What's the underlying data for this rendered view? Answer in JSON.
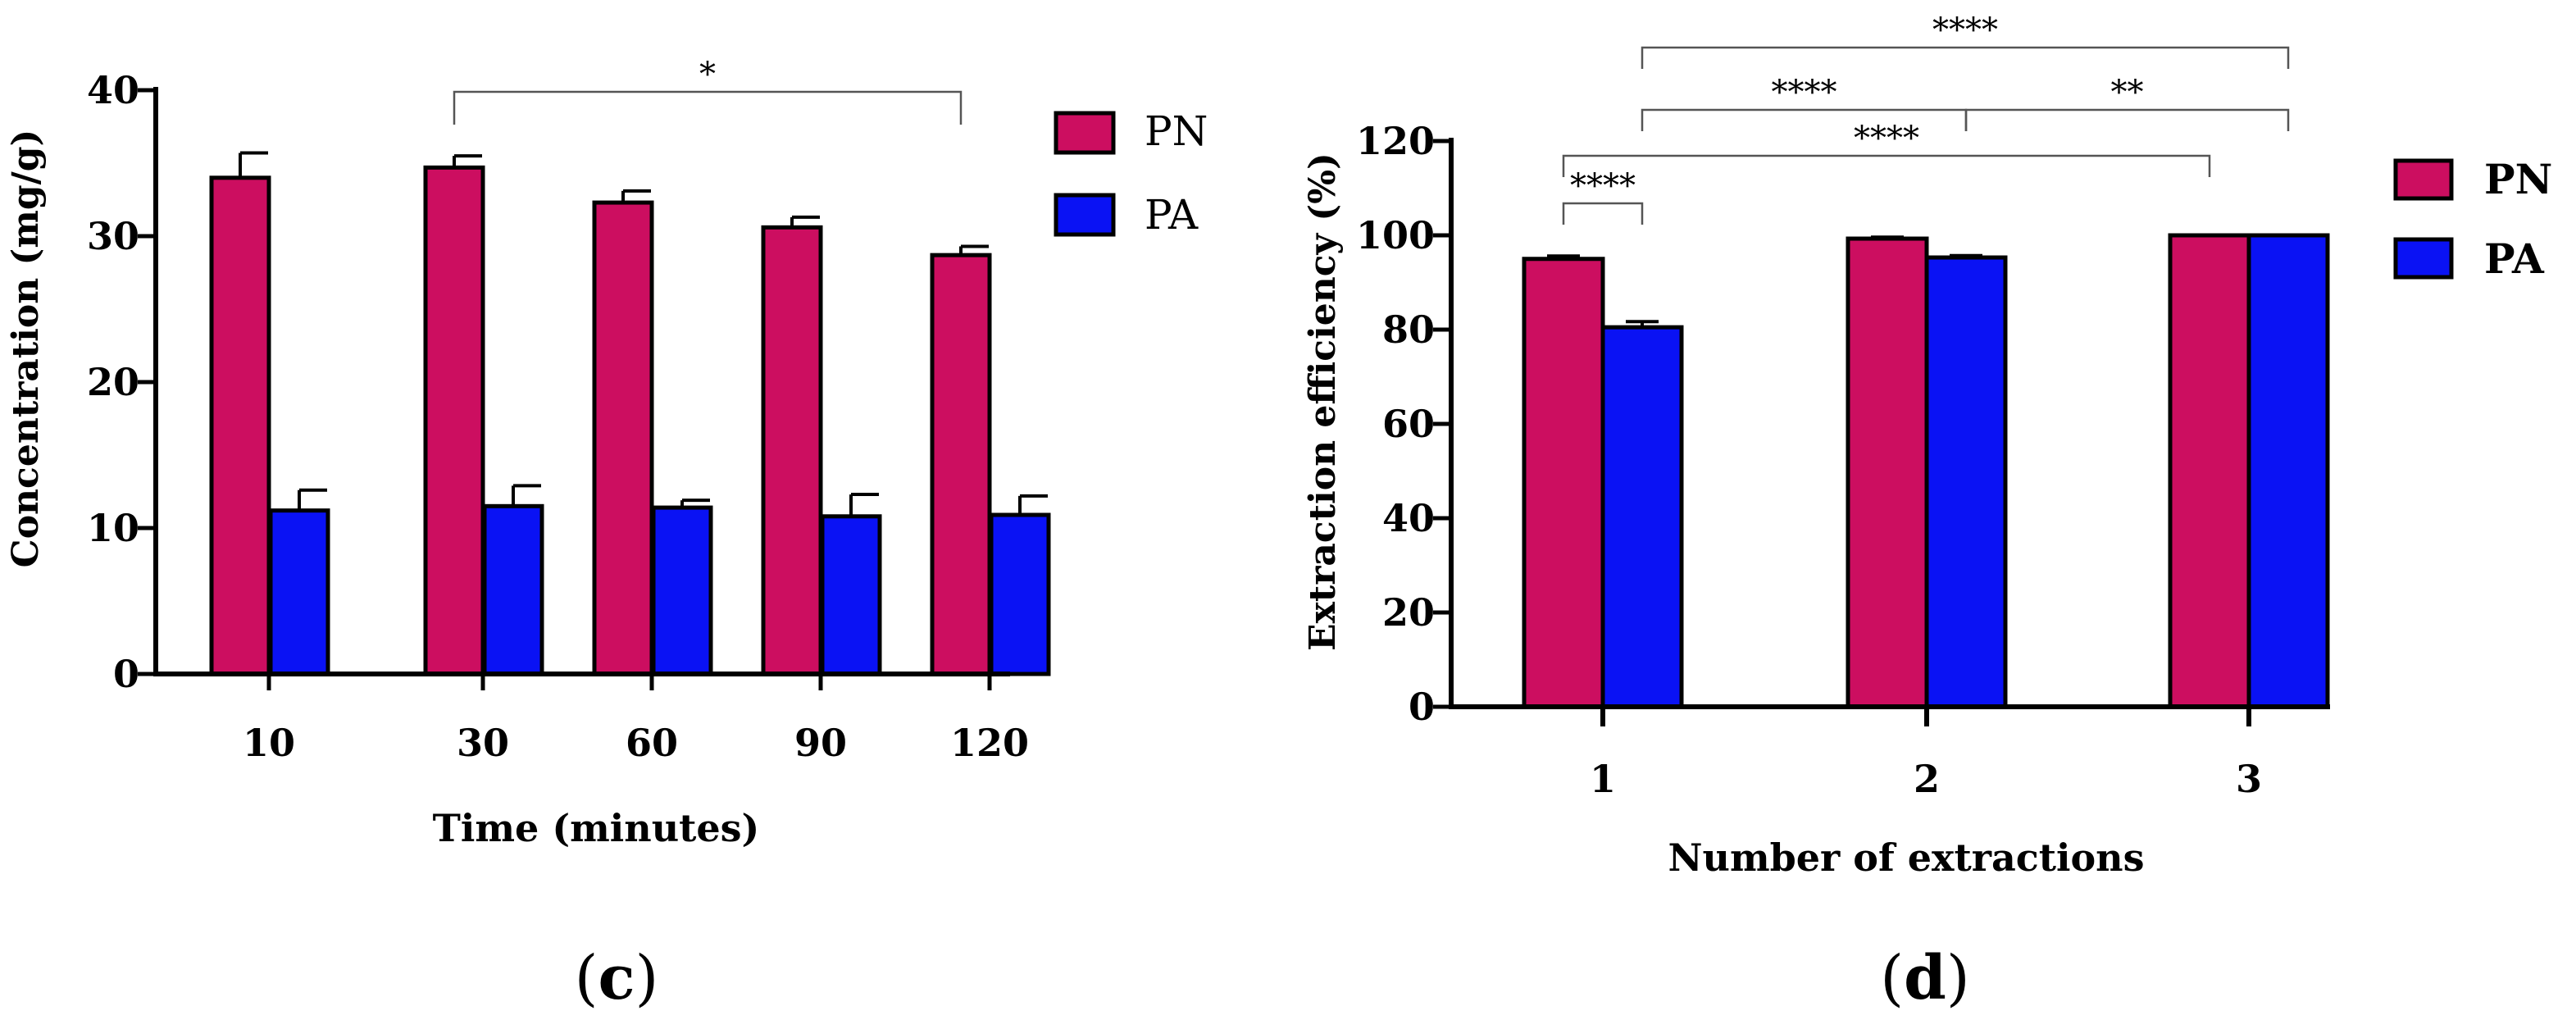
{
  "colors": {
    "pn": "#CC0E60",
    "pa": "#0A12F4",
    "axis": "#000000",
    "bracket": "#555555"
  },
  "chart_data": [
    {
      "panel": "c",
      "type": "bar",
      "panel_label": {
        "open": "(",
        "letter": "c",
        "close": ")"
      },
      "xlabel": "Time (minutes)",
      "ylabel": "Concentration (mg/g)",
      "ylim": [
        0,
        40
      ],
      "yticks": [
        "0",
        "10",
        "20",
        "30",
        "40"
      ],
      "categories": [
        "10",
        "30",
        "60",
        "90",
        "120"
      ],
      "series": [
        {
          "name": "PN",
          "color": "#CC0E60",
          "values": [
            34.0,
            34.7,
            32.3,
            30.6,
            28.7
          ],
          "errors": [
            1.7,
            0.8,
            0.8,
            0.7,
            0.6
          ]
        },
        {
          "name": "PA",
          "color": "#0A12F4",
          "values": [
            11.2,
            11.5,
            11.4,
            10.8,
            10.9
          ],
          "errors": [
            1.4,
            1.4,
            0.5,
            1.5,
            1.3
          ]
        }
      ],
      "significance": [
        {
          "from": 1,
          "to": 4,
          "series": 0,
          "label": "*"
        }
      ],
      "legend": [
        "PN",
        "PA"
      ],
      "legend_position": "right"
    },
    {
      "panel": "d",
      "type": "bar",
      "panel_label": {
        "open": "(",
        "letter": "d",
        "close": ")"
      },
      "xlabel": "Number of extractions",
      "ylabel": "Extraction efficiency (%)",
      "ylim": [
        0,
        120
      ],
      "yticks": [
        "0",
        "20",
        "40",
        "60",
        "80",
        "100",
        "120"
      ],
      "categories": [
        "1",
        "2",
        "3"
      ],
      "series": [
        {
          "name": "PN",
          "color": "#CC0E60",
          "values": [
            95.0,
            99.3,
            100.0
          ],
          "errors": [
            0.6,
            0.3,
            0.0
          ]
        },
        {
          "name": "PA",
          "color": "#0A12F4",
          "values": [
            80.5,
            95.3,
            100.0
          ],
          "errors": [
            1.2,
            0.4,
            0.0
          ]
        }
      ],
      "significance": [
        {
          "label": "****",
          "from": [
            0,
            0
          ],
          "to": [
            0,
            1
          ]
        },
        {
          "label": "****",
          "from": [
            0,
            0
          ],
          "to": [
            2,
            0
          ]
        },
        {
          "label": "****",
          "from": [
            0,
            1
          ],
          "to": [
            1,
            1
          ]
        },
        {
          "label": "**",
          "from": [
            1,
            1
          ],
          "to": [
            2,
            1
          ]
        },
        {
          "label": "****",
          "from": [
            0,
            1
          ],
          "to": [
            2,
            1
          ]
        }
      ],
      "legend": [
        "PN",
        "PA"
      ],
      "legend_position": "right"
    }
  ]
}
